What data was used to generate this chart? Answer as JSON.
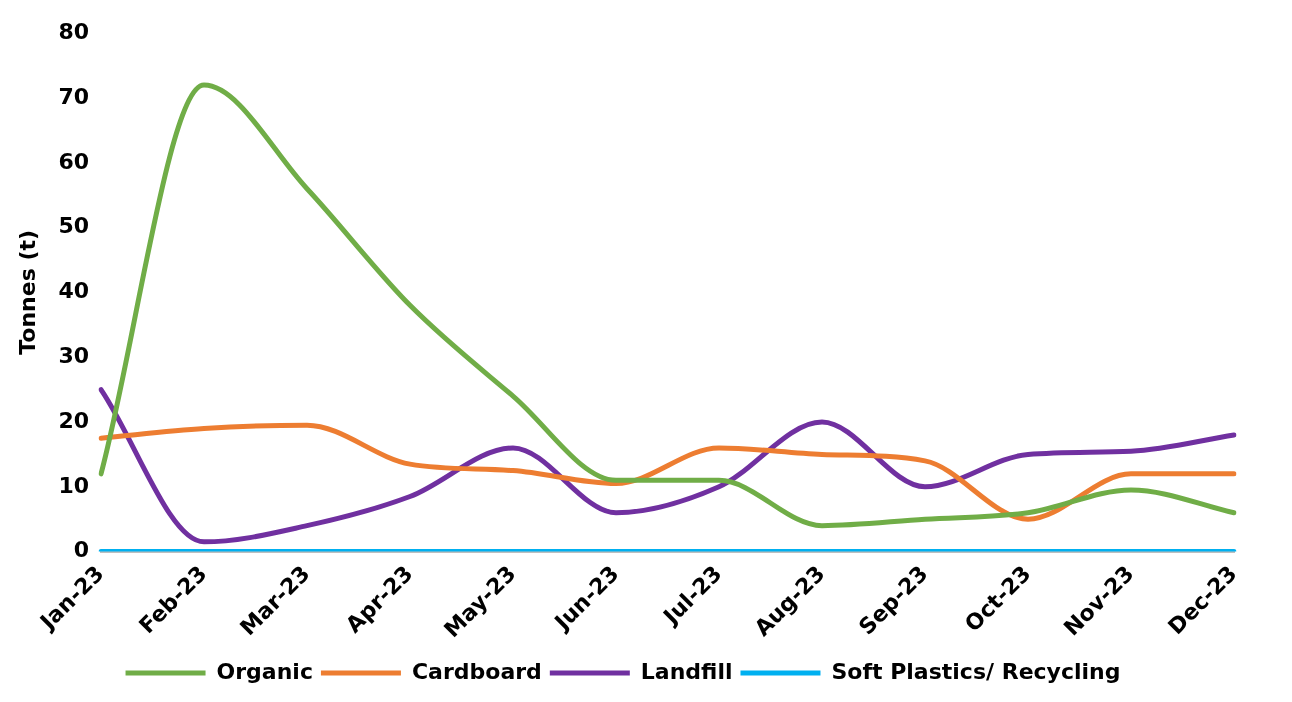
{
  "chart_data": {
    "type": "line",
    "ylabel": "Tonnes (t)",
    "categories": [
      "Jan-23",
      "Feb-23",
      "Mar-23",
      "Apr-23",
      "May-23",
      "Jun-23",
      "Jul-23",
      "Aug-23",
      "Sep-23",
      "Oct-23",
      "Nov-23",
      "Dec-23"
    ],
    "series": [
      {
        "name": "Organic",
        "color": "#70ad47",
        "values": [
          12,
          72,
          56,
          38,
          24,
          11,
          11,
          4,
          5,
          6,
          9.5,
          6
        ]
      },
      {
        "name": "Cardboard",
        "color": "#ed7d31",
        "values": [
          17.5,
          19,
          19.5,
          13.5,
          12.5,
          10.5,
          16,
          15,
          14,
          5,
          12,
          12
        ]
      },
      {
        "name": "Landfill",
        "color": "#7030a0",
        "values": [
          25,
          1.5,
          4,
          8.5,
          16,
          6,
          10,
          20,
          10,
          15,
          15.5,
          18
        ]
      },
      {
        "name": "Soft Plastics/ Recycling",
        "color": "#00b0f0",
        "values": [
          0,
          0,
          0,
          0,
          0,
          0,
          0,
          0,
          0,
          0,
          0,
          0
        ]
      }
    ],
    "ylim": [
      0,
      80
    ],
    "yticks": [
      0,
      10,
      20,
      30,
      40,
      50,
      60,
      70,
      80
    ],
    "grid": false,
    "legend": "bottom",
    "marker": "none",
    "line_style": "solid"
  }
}
